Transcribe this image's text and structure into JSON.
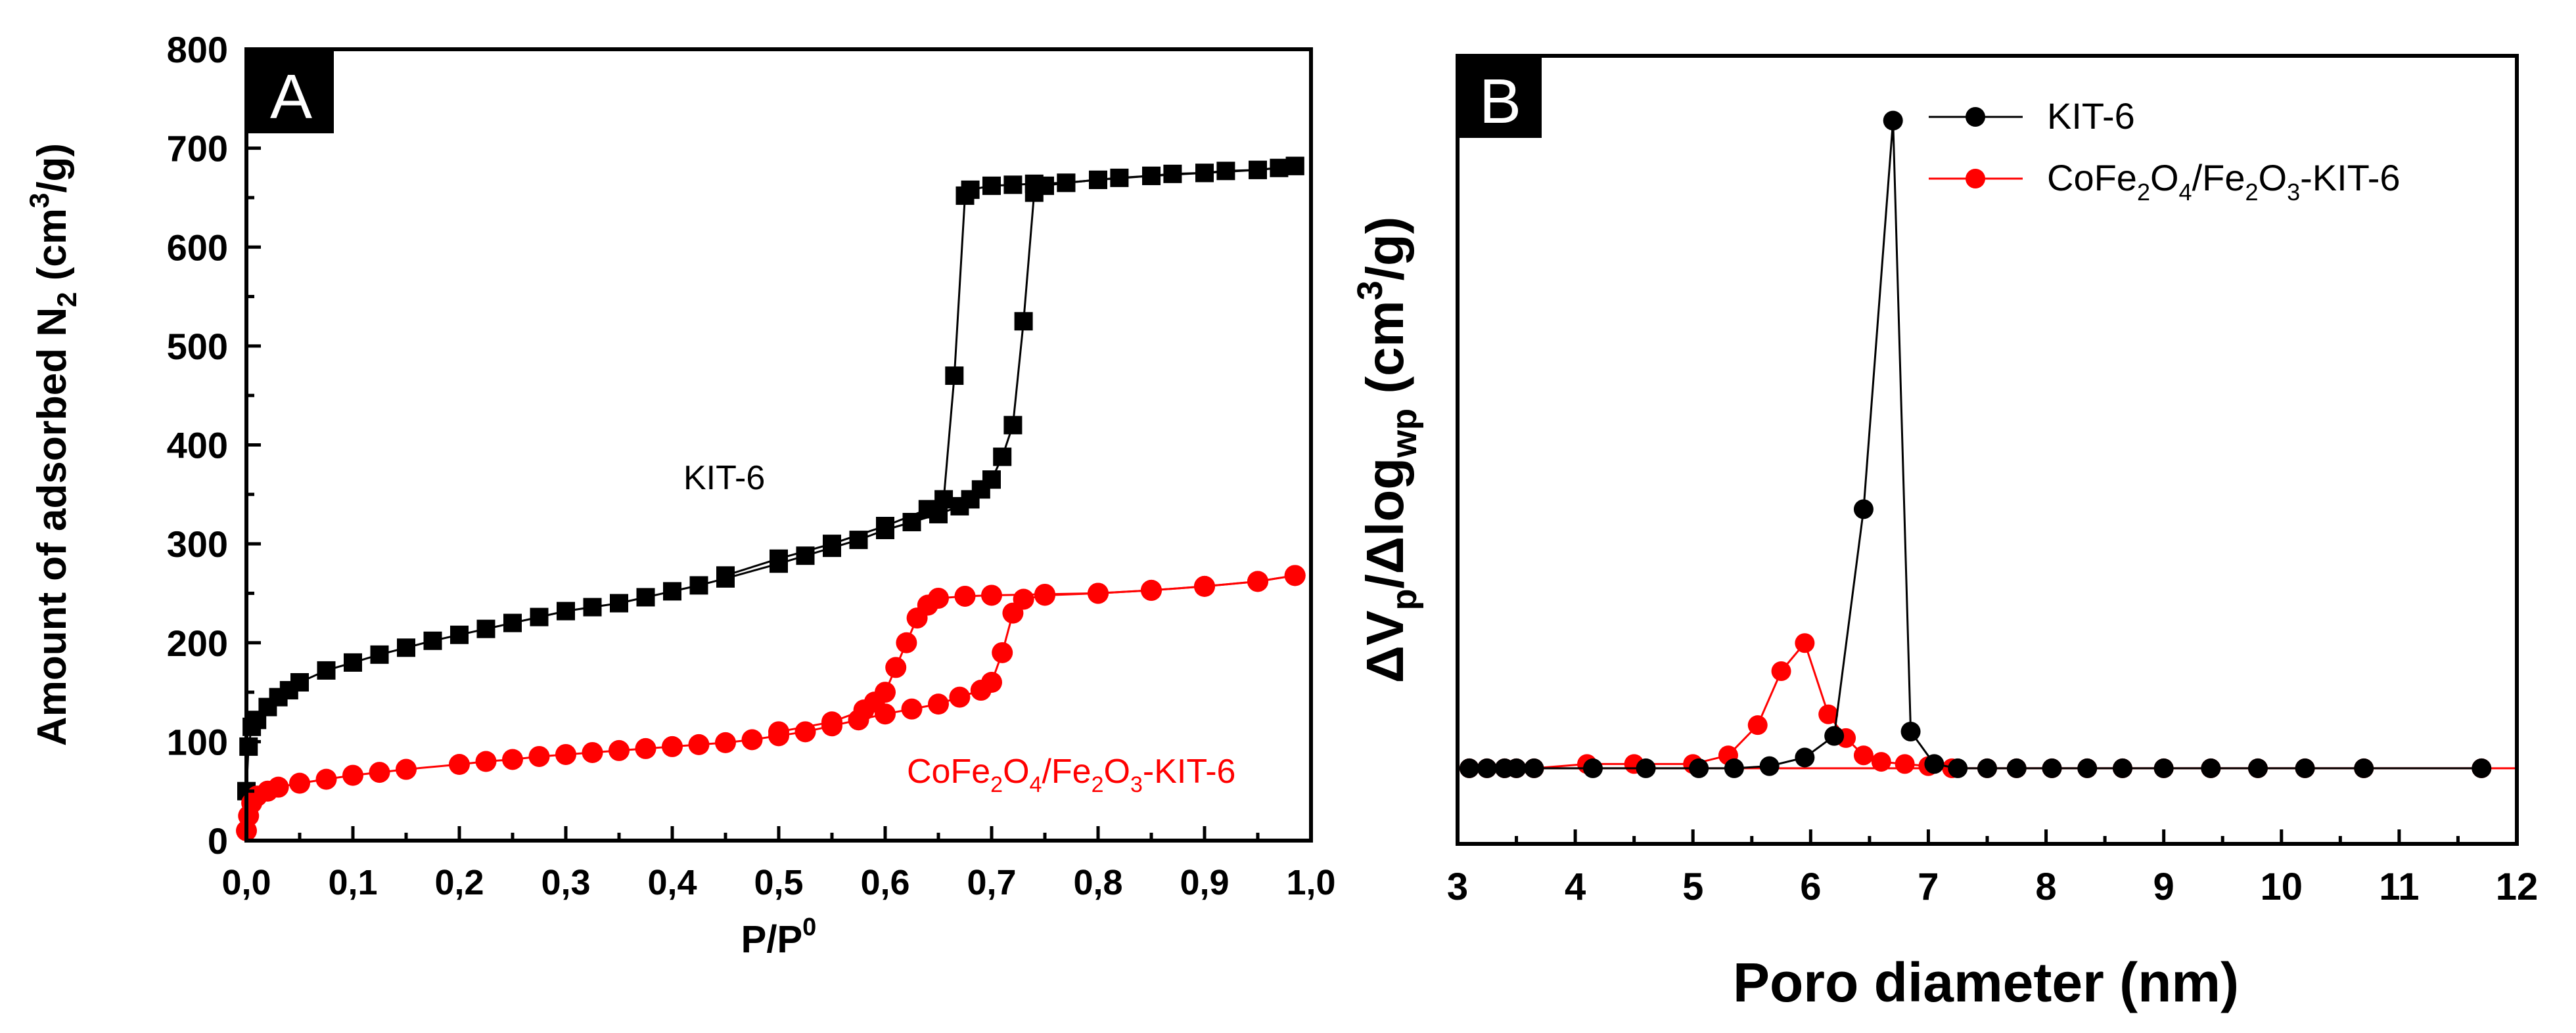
{
  "chart_data": [
    {
      "panel": "A",
      "type": "scatter",
      "xlabel": "P/P",
      "xlabel_sup": "0",
      "ylabel": "Amount of adsorbed N",
      "ylabel_sub": "2",
      "ylabel_units": " (cm",
      "ylabel_units_sup": "3",
      "ylabel_units_end": "/g)",
      "xlim": [
        0.0,
        1.0
      ],
      "ylim": [
        0,
        800
      ],
      "xticks": [
        "0,0",
        "0,1",
        "0,2",
        "0,3",
        "0,4",
        "0,5",
        "0,6",
        "0,7",
        "0,8",
        "0,9",
        "1,0"
      ],
      "yticks": [
        "0",
        "100",
        "200",
        "300",
        "400",
        "500",
        "600",
        "700",
        "800"
      ],
      "annotations": {
        "kit6": "KIT-6",
        "cofe_a": "CoFe",
        "cofe_sub1": "2",
        "cofe_b": "O",
        "cofe_sub2": "4",
        "cofe_c": "/Fe",
        "cofe_sub3": "2",
        "cofe_d": "O",
        "cofe_sub4": "3",
        "cofe_e": "-KIT-6"
      },
      "series": [
        {
          "name": "KIT-6",
          "color": "#000000",
          "marker": "square",
          "adsorption": [
            [
              0.0,
              50
            ],
            [
              0.002,
              95
            ],
            [
              0.005,
              115
            ],
            [
              0.01,
              122
            ],
            [
              0.02,
              135
            ],
            [
              0.03,
              145
            ],
            [
              0.04,
              152
            ],
            [
              0.05,
              160
            ],
            [
              0.075,
              172
            ],
            [
              0.1,
              180
            ],
            [
              0.125,
              188
            ],
            [
              0.15,
              195
            ],
            [
              0.175,
              202
            ],
            [
              0.2,
              208
            ],
            [
              0.225,
              214
            ],
            [
              0.25,
              220
            ],
            [
              0.275,
              226
            ],
            [
              0.3,
              232
            ],
            [
              0.325,
              236
            ],
            [
              0.35,
              240
            ],
            [
              0.375,
              246
            ],
            [
              0.4,
              252
            ],
            [
              0.425,
              258
            ],
            [
              0.45,
              265
            ],
            [
              0.5,
              280
            ],
            [
              0.525,
              288
            ],
            [
              0.55,
              296
            ],
            [
              0.575,
              304
            ],
            [
              0.6,
              314
            ],
            [
              0.625,
              322
            ],
            [
              0.65,
              330
            ],
            [
              0.67,
              338
            ],
            [
              0.68,
              345
            ],
            [
              0.69,
              355
            ],
            [
              0.7,
              365
            ],
            [
              0.71,
              388
            ],
            [
              0.72,
              420
            ],
            [
              0.73,
              525
            ],
            [
              0.74,
              655
            ],
            [
              0.75,
              662
            ],
            [
              0.77,
              665
            ],
            [
              0.8,
              668
            ],
            [
              0.82,
              670
            ],
            [
              0.85,
              672
            ],
            [
              0.87,
              674
            ],
            [
              0.9,
              675
            ],
            [
              0.92,
              677
            ],
            [
              0.95,
              678
            ],
            [
              0.97,
              680
            ],
            [
              0.985,
              682
            ]
          ],
          "desorption": [
            [
              0.985,
              682
            ],
            [
              0.95,
              678
            ],
            [
              0.9,
              675
            ],
            [
              0.85,
              672
            ],
            [
              0.8,
              668
            ],
            [
              0.77,
              665
            ],
            [
              0.74,
              664
            ],
            [
              0.72,
              663
            ],
            [
              0.7,
              662
            ],
            [
              0.68,
              658
            ],
            [
              0.675,
              652
            ],
            [
              0.665,
              470
            ],
            [
              0.655,
              345
            ],
            [
              0.64,
              335
            ],
            [
              0.6,
              318
            ],
            [
              0.55,
              300
            ],
            [
              0.5,
              285
            ],
            [
              0.45,
              268
            ]
          ]
        },
        {
          "name": "CoFe2O4/Fe2O3-KIT-6",
          "color": "#ff0000",
          "marker": "circle",
          "adsorption": [
            [
              0.0,
              10
            ],
            [
              0.002,
              25
            ],
            [
              0.005,
              38
            ],
            [
              0.01,
              45
            ],
            [
              0.02,
              50
            ],
            [
              0.03,
              54
            ],
            [
              0.05,
              58
            ],
            [
              0.075,
              62
            ],
            [
              0.1,
              66
            ],
            [
              0.125,
              69
            ],
            [
              0.15,
              72
            ],
            [
              0.2,
              77
            ],
            [
              0.225,
              80
            ],
            [
              0.25,
              82
            ],
            [
              0.275,
              85
            ],
            [
              0.3,
              87
            ],
            [
              0.325,
              89
            ],
            [
              0.35,
              91
            ],
            [
              0.375,
              93
            ],
            [
              0.4,
              95
            ],
            [
              0.425,
              97
            ],
            [
              0.45,
              99
            ],
            [
              0.475,
              102
            ],
            [
              0.5,
              106
            ],
            [
              0.525,
              110
            ],
            [
              0.55,
              116
            ],
            [
              0.575,
              122
            ],
            [
              0.6,
              128
            ],
            [
              0.625,
              133
            ],
            [
              0.65,
              138
            ],
            [
              0.67,
              145
            ],
            [
              0.69,
              152
            ],
            [
              0.7,
              160
            ],
            [
              0.71,
              190
            ],
            [
              0.72,
              230
            ],
            [
              0.73,
              244
            ],
            [
              0.75,
              248
            ],
            [
              0.8,
              250
            ],
            [
              0.85,
              253
            ],
            [
              0.9,
              257
            ],
            [
              0.95,
              262
            ],
            [
              0.985,
              268
            ]
          ],
          "desorption": [
            [
              0.985,
              268
            ],
            [
              0.95,
              262
            ],
            [
              0.9,
              257
            ],
            [
              0.85,
              253
            ],
            [
              0.8,
              250
            ],
            [
              0.75,
              249
            ],
            [
              0.7,
              248
            ],
            [
              0.675,
              247
            ],
            [
              0.65,
              245
            ],
            [
              0.64,
              238
            ],
            [
              0.63,
              225
            ],
            [
              0.62,
              200
            ],
            [
              0.61,
              175
            ],
            [
              0.6,
              150
            ],
            [
              0.59,
              140
            ],
            [
              0.58,
              132
            ],
            [
              0.55,
              120
            ],
            [
              0.5,
              110
            ]
          ]
        }
      ]
    },
    {
      "panel": "B",
      "type": "line",
      "xlabel": "Poro diameter (nm)",
      "ylabel": "ΔV",
      "ylabel_sub1": "p",
      "ylabel_mid": "/Δlog",
      "ylabel_sub2": "wp",
      "ylabel_units": " (cm",
      "ylabel_units_sup": "3",
      "ylabel_units_end": "/g)",
      "xlim": [
        3,
        12
      ],
      "ylim": [
        -0.35,
        3.3
      ],
      "xticks": [
        "3",
        "4",
        "5",
        "6",
        "7",
        "8",
        "9",
        "10",
        "11",
        "12"
      ],
      "legend": {
        "kit6": "KIT-6",
        "cofe_a": "CoFe",
        "cofe_sub1": "2",
        "cofe_b": "O",
        "cofe_sub2": "4",
        "cofe_c": "/Fe",
        "cofe_sub3": "2",
        "cofe_d": "O",
        "cofe_sub4": "3",
        "cofe_e": "-KIT-6"
      },
      "series": [
        {
          "name": "KIT-6",
          "color": "#000000",
          "marker": "circle",
          "points": [
            [
              3.1,
              0
            ],
            [
              3.25,
              0
            ],
            [
              3.4,
              0
            ],
            [
              3.5,
              0
            ],
            [
              3.65,
              0
            ],
            [
              4.15,
              0
            ],
            [
              4.6,
              0
            ],
            [
              5.05,
              0
            ],
            [
              5.35,
              0
            ],
            [
              5.65,
              0.01
            ],
            [
              5.95,
              0.05
            ],
            [
              6.2,
              0.15
            ],
            [
              6.45,
              1.2
            ],
            [
              6.7,
              3.0
            ],
            [
              6.85,
              0.17
            ],
            [
              7.05,
              0.02
            ],
            [
              7.25,
              0
            ],
            [
              7.5,
              0
            ],
            [
              7.75,
              0
            ],
            [
              8.05,
              0
            ],
            [
              8.35,
              0
            ],
            [
              8.65,
              0
            ],
            [
              9.0,
              0
            ],
            [
              9.4,
              0
            ],
            [
              9.8,
              0
            ],
            [
              10.2,
              0
            ],
            [
              10.7,
              0
            ],
            [
              11.7,
              0
            ]
          ]
        },
        {
          "name": "CoFe2O4/Fe2O3-KIT-6",
          "color": "#ff0000",
          "marker": "circle",
          "points": [
            [
              3.1,
              0
            ],
            [
              3.25,
              0
            ],
            [
              3.4,
              0
            ],
            [
              3.5,
              0
            ],
            [
              3.65,
              0
            ],
            [
              4.1,
              0.02
            ],
            [
              4.5,
              0.02
            ],
            [
              5.0,
              0.02
            ],
            [
              5.3,
              0.06
            ],
            [
              5.55,
              0.2
            ],
            [
              5.75,
              0.45
            ],
            [
              5.95,
              0.58
            ],
            [
              6.15,
              0.25
            ],
            [
              6.3,
              0.14
            ],
            [
              6.45,
              0.06
            ],
            [
              6.6,
              0.03
            ],
            [
              6.8,
              0.02
            ],
            [
              7.0,
              0.01
            ],
            [
              7.2,
              0
            ],
            [
              7.5,
              0
            ],
            [
              7.75,
              0
            ],
            [
              8.05,
              0
            ],
            [
              8.35,
              0
            ],
            [
              8.65,
              0
            ],
            [
              9.0,
              0
            ],
            [
              9.4,
              0
            ],
            [
              9.8,
              0
            ],
            [
              10.2,
              0
            ],
            [
              10.7,
              0
            ],
            [
              11.7,
              0
            ]
          ]
        }
      ]
    }
  ]
}
